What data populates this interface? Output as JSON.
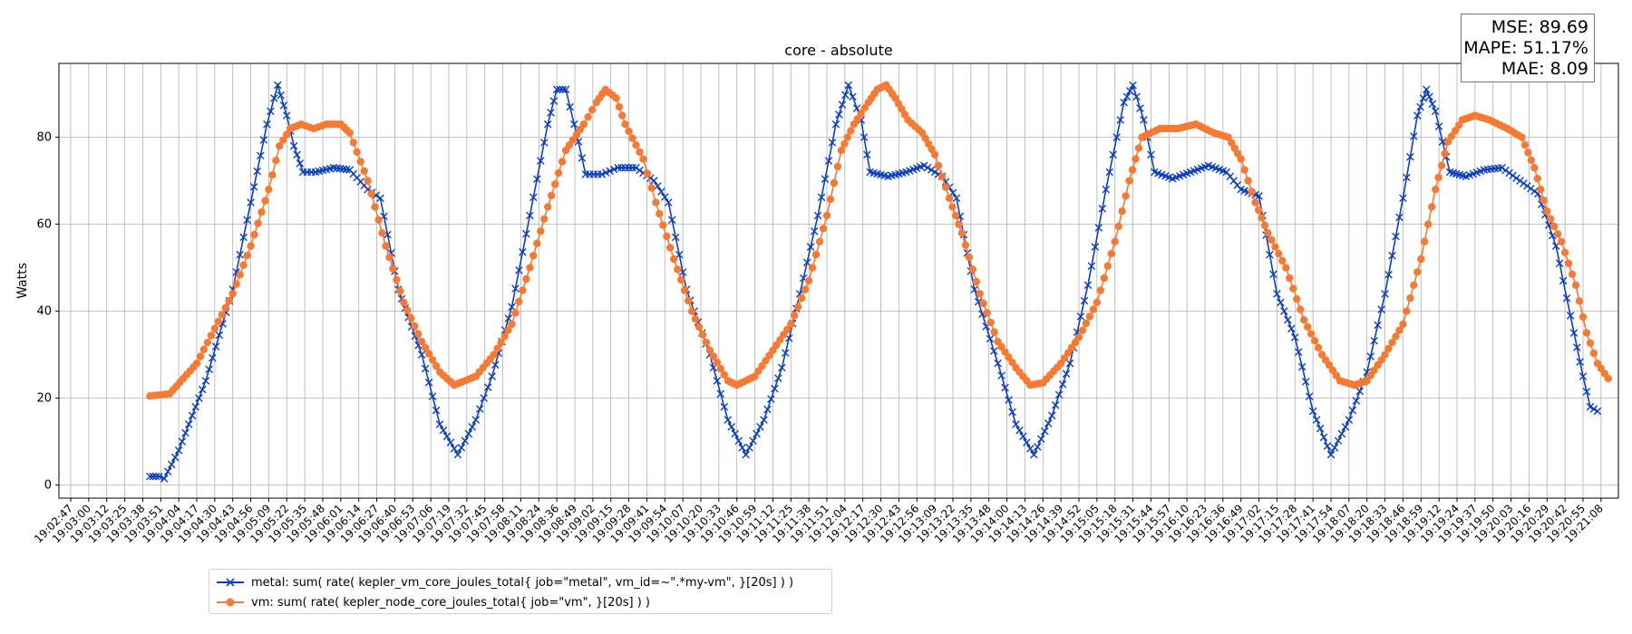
{
  "chart_data": {
    "type": "line",
    "title": "core - absolute",
    "xlabel": "",
    "ylabel": "Watts",
    "ylim": [
      -3,
      97
    ],
    "yticks": [
      0,
      20,
      40,
      60,
      80
    ],
    "grid": true,
    "legend_position": "bottom-left",
    "x_ticks": [
      "19:02:47",
      "19:03:00",
      "19:03:12",
      "19:03:25",
      "19:03:38",
      "19:03:51",
      "19:04:04",
      "19:04:17",
      "19:04:30",
      "19:04:43",
      "19:04:56",
      "19:05:09",
      "19:05:22",
      "19:05:35",
      "19:05:48",
      "19:06:01",
      "19:06:14",
      "19:06:27",
      "19:06:40",
      "19:06:53",
      "19:07:06",
      "19:07:19",
      "19:07:32",
      "19:07:45",
      "19:07:58",
      "19:08:11",
      "19:08:24",
      "19:08:36",
      "19:08:49",
      "19:09:02",
      "19:09:15",
      "19:09:28",
      "19:09:41",
      "19:09:54",
      "19:10:07",
      "19:10:20",
      "19:10:33",
      "19:10:46",
      "19:10:59",
      "19:11:12",
      "19:11:25",
      "19:11:38",
      "19:11:51",
      "19:12:04",
      "19:12:17",
      "19:12:30",
      "19:12:43",
      "19:12:56",
      "19:13:09",
      "19:13:22",
      "19:13:35",
      "19:13:48",
      "19:14:00",
      "19:14:13",
      "19:14:26",
      "19:14:39",
      "19:14:52",
      "19:15:05",
      "19:15:18",
      "19:15:31",
      "19:15:44",
      "19:15:57",
      "19:16:10",
      "19:16:23",
      "19:16:36",
      "19:16:49",
      "19:17:02",
      "19:17:15",
      "19:17:28",
      "19:17:41",
      "19:17:54",
      "19:18:07",
      "19:18:20",
      "19:18:33",
      "19:18:46",
      "19:18:59",
      "19:19:12",
      "19:19:24",
      "19:19:37",
      "19:19:50",
      "19:20:03",
      "19:20:16",
      "19:20:29",
      "19:20:42",
      "19:20:55",
      "19:21:08"
    ],
    "series": [
      {
        "name": "metal: sum( rate( kepler_vm_core_joules_total{ job=\"metal\", vm_id=~\".*my-vm\", }[20s] ) )",
        "color": "#0a3fbf",
        "marker": "x",
        "keypoints": [
          [
            4.4,
            2
          ],
          [
            4.9,
            2
          ],
          [
            5.2,
            1.5
          ],
          [
            6.0,
            8
          ],
          [
            7.5,
            24
          ],
          [
            9.0,
            45
          ],
          [
            10.0,
            65
          ],
          [
            10.9,
            83
          ],
          [
            11.5,
            92
          ],
          [
            12.0,
            85
          ],
          [
            12.4,
            78
          ],
          [
            12.9,
            72
          ],
          [
            13.6,
            72
          ],
          [
            14.6,
            73
          ],
          [
            15.5,
            72.5
          ],
          [
            16.5,
            68
          ],
          [
            17.2,
            66
          ],
          [
            18.2,
            45
          ],
          [
            19.5,
            30
          ],
          [
            20.5,
            14
          ],
          [
            21.5,
            7
          ],
          [
            22.5,
            15
          ],
          [
            23.4,
            25
          ],
          [
            24.5,
            41
          ],
          [
            25.5,
            62
          ],
          [
            26.5,
            83
          ],
          [
            27.0,
            91
          ],
          [
            27.5,
            91
          ],
          [
            28.2,
            79
          ],
          [
            28.6,
            71.5
          ],
          [
            29.5,
            71.5
          ],
          [
            30.4,
            73
          ],
          [
            31.4,
            73
          ],
          [
            32.4,
            70
          ],
          [
            33.2,
            65
          ],
          [
            34.2,
            45
          ],
          [
            35.5,
            30
          ],
          [
            36.5,
            15
          ],
          [
            37.5,
            7
          ],
          [
            38.5,
            15
          ],
          [
            39.5,
            27
          ],
          [
            40.5,
            44
          ],
          [
            41.5,
            62
          ],
          [
            42.5,
            83
          ],
          [
            43.2,
            92
          ],
          [
            43.9,
            84
          ],
          [
            44.4,
            72
          ],
          [
            45.4,
            71
          ],
          [
            46.4,
            72
          ],
          [
            47.4,
            73.5
          ],
          [
            48.4,
            71
          ],
          [
            49.2,
            66
          ],
          [
            50.2,
            45
          ],
          [
            51.5,
            28
          ],
          [
            52.5,
            14
          ],
          [
            53.5,
            7
          ],
          [
            54.5,
            16
          ],
          [
            55.5,
            28
          ],
          [
            56.5,
            46
          ],
          [
            57.5,
            68
          ],
          [
            58.5,
            88
          ],
          [
            59.0,
            92
          ],
          [
            59.6,
            84
          ],
          [
            60.2,
            72
          ],
          [
            61.2,
            70.5
          ],
          [
            62.2,
            72
          ],
          [
            63.2,
            73.5
          ],
          [
            64.2,
            72
          ],
          [
            65.0,
            68
          ],
          [
            66.0,
            66.5
          ],
          [
            67.0,
            44
          ],
          [
            68.0,
            34
          ],
          [
            69.0,
            17
          ],
          [
            70.0,
            7
          ],
          [
            71.0,
            15
          ],
          [
            72.0,
            26
          ],
          [
            73.0,
            44
          ],
          [
            74.0,
            66
          ],
          [
            74.8,
            85
          ],
          [
            75.3,
            91
          ],
          [
            75.8,
            86
          ],
          [
            76.6,
            72
          ],
          [
            77.5,
            71
          ],
          [
            78.5,
            72.5
          ],
          [
            79.5,
            73
          ],
          [
            80.5,
            70
          ],
          [
            81.5,
            67
          ],
          [
            82.5,
            55
          ],
          [
            83.5,
            35
          ],
          [
            84.0,
            25
          ],
          [
            84.4,
            18
          ],
          [
            84.8,
            17
          ]
        ]
      },
      {
        "name": "vm: sum( rate( kepler_node_core_joules_total{ job=\"vm\", }[20s] ) )",
        "color": "#f77a33",
        "marker": "o",
        "keypoints": [
          [
            4.4,
            20.5
          ],
          [
            5.5,
            21
          ],
          [
            7.0,
            28
          ],
          [
            8.0,
            36
          ],
          [
            9.0,
            44
          ],
          [
            10.0,
            55
          ],
          [
            11.0,
            68
          ],
          [
            11.6,
            78
          ],
          [
            12.2,
            82
          ],
          [
            12.8,
            83
          ],
          [
            13.5,
            82
          ],
          [
            14.2,
            83
          ],
          [
            15.0,
            83
          ],
          [
            15.5,
            81
          ],
          [
            16.5,
            70
          ],
          [
            17.5,
            55
          ],
          [
            18.5,
            42
          ],
          [
            19.5,
            33
          ],
          [
            20.5,
            26
          ],
          [
            21.3,
            23
          ],
          [
            22.5,
            25
          ],
          [
            23.5,
            30
          ],
          [
            24.5,
            37
          ],
          [
            25.5,
            50
          ],
          [
            26.5,
            64
          ],
          [
            27.5,
            77
          ],
          [
            28.5,
            83
          ],
          [
            29.2,
            88
          ],
          [
            29.7,
            91
          ],
          [
            30.3,
            89
          ],
          [
            30.8,
            83
          ],
          [
            31.8,
            75
          ],
          [
            32.5,
            65
          ],
          [
            33.5,
            52
          ],
          [
            34.5,
            40
          ],
          [
            35.5,
            31
          ],
          [
            36.5,
            24
          ],
          [
            37.0,
            23
          ],
          [
            38.0,
            25
          ],
          [
            39.0,
            31
          ],
          [
            40.0,
            37
          ],
          [
            41.0,
            47
          ],
          [
            42.0,
            62
          ],
          [
            42.8,
            77
          ],
          [
            43.5,
            83
          ],
          [
            44.3,
            88
          ],
          [
            44.8,
            91
          ],
          [
            45.3,
            92
          ],
          [
            45.8,
            89
          ],
          [
            46.5,
            84
          ],
          [
            47.3,
            81
          ],
          [
            48.0,
            76
          ],
          [
            48.8,
            66
          ],
          [
            49.5,
            58
          ],
          [
            50.5,
            44
          ],
          [
            51.5,
            33
          ],
          [
            52.5,
            27
          ],
          [
            53.3,
            23
          ],
          [
            54.0,
            23.5
          ],
          [
            55.0,
            28
          ],
          [
            56.0,
            34
          ],
          [
            57.0,
            42
          ],
          [
            58.0,
            56
          ],
          [
            58.8,
            70
          ],
          [
            59.5,
            80
          ],
          [
            60.5,
            82
          ],
          [
            61.5,
            82
          ],
          [
            62.5,
            83
          ],
          [
            63.5,
            81
          ],
          [
            64.3,
            80
          ],
          [
            65.0,
            75
          ],
          [
            65.8,
            65
          ],
          [
            66.5,
            58
          ],
          [
            67.5,
            50
          ],
          [
            68.5,
            38
          ],
          [
            69.5,
            30
          ],
          [
            70.5,
            24
          ],
          [
            71.3,
            23
          ],
          [
            72.0,
            24
          ],
          [
            73.0,
            30
          ],
          [
            74.0,
            37
          ],
          [
            75.0,
            52
          ],
          [
            75.8,
            68
          ],
          [
            76.5,
            79
          ],
          [
            77.3,
            84
          ],
          [
            78.0,
            85
          ],
          [
            78.8,
            84
          ],
          [
            79.8,
            82
          ],
          [
            80.6,
            80
          ],
          [
            81.3,
            73
          ],
          [
            82.0,
            63
          ],
          [
            82.8,
            56
          ],
          [
            83.6,
            46
          ],
          [
            84.2,
            35
          ],
          [
            84.8,
            28
          ],
          [
            85.4,
            24.5
          ]
        ]
      }
    ]
  },
  "stats": {
    "mse": "MSE: 89.69",
    "mape": "MAPE: 51.17%",
    "mae": "MAE: 8.09"
  },
  "legend": {
    "metal_label": "metal: sum( rate( kepler_vm_core_joules_total{ job=\"metal\", vm_id=~\".*my-vm\", }[20s] ) )",
    "vm_label": "vm: sum( rate( kepler_node_core_joules_total{ job=\"vm\", }[20s] ) )"
  }
}
